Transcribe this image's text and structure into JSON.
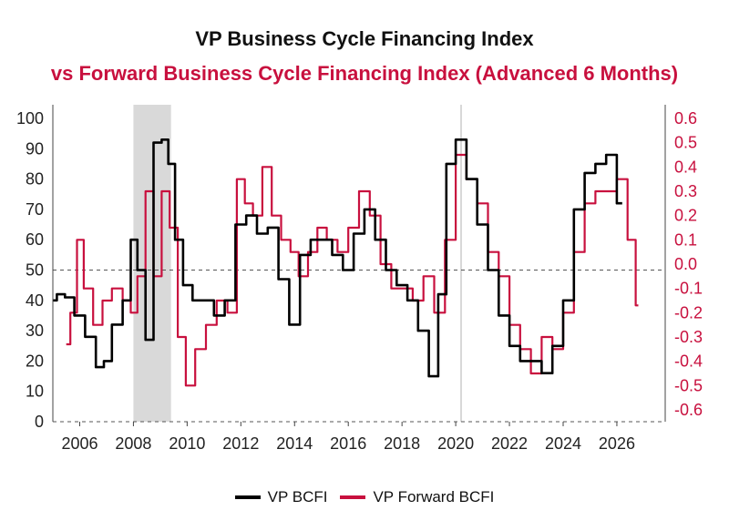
{
  "chart_data": {
    "type": "line",
    "title": "VP Business Cycle Financing Index",
    "subtitle": "vs Forward Business Cycle Financing Index (Advanced 6 Months)",
    "x_ticks": [
      "2006",
      "2008",
      "2010",
      "2012",
      "2014",
      "2016",
      "2018",
      "2020",
      "2022",
      "2024",
      "2026"
    ],
    "y_left": {
      "range": [
        0,
        100
      ],
      "ticks": [
        "0",
        "10",
        "20",
        "30",
        "40",
        "50",
        "60",
        "70",
        "80",
        "90",
        "100"
      ]
    },
    "y_right": {
      "range": [
        -0.65,
        0.65
      ],
      "ticks": [
        "-0.6",
        "-0.5",
        "-0.4",
        "-0.3",
        "-0.2",
        "-0.1",
        "0.0",
        "0.1",
        "0.2",
        "0.3",
        "0.4",
        "0.5",
        "0.6"
      ]
    },
    "x_range": [
      2005.0,
      2027.8
    ],
    "reference_lines": {
      "left_50": 50,
      "left_0": 0
    },
    "shaded_region": {
      "from": 2008.0,
      "to": 2009.4
    },
    "vline": 2020.2,
    "series": [
      {
        "name": "VP BCFI",
        "axis": "left",
        "color": "#000000",
        "x": [
          2005.0,
          2005.3,
          2005.6,
          2006.0,
          2006.4,
          2006.8,
          2007.0,
          2007.4,
          2007.8,
          2008.0,
          2008.3,
          2008.6,
          2008.9,
          2009.2,
          2009.4,
          2009.7,
          2010.0,
          2010.4,
          2010.8,
          2011.2,
          2011.6,
          2012.0,
          2012.4,
          2012.8,
          2013.2,
          2013.6,
          2014.0,
          2014.4,
          2014.8,
          2015.2,
          2015.6,
          2016.0,
          2016.4,
          2016.8,
          2017.2,
          2017.6,
          2018.0,
          2018.4,
          2018.8,
          2019.2,
          2019.5,
          2019.8,
          2020.2,
          2020.6,
          2021.0,
          2021.4,
          2021.8,
          2022.2,
          2022.6,
          2023.0,
          2023.4,
          2023.8,
          2024.2,
          2024.6,
          2025.0,
          2025.4,
          2025.8,
          2026.2
        ],
        "values": [
          40,
          42,
          41,
          35,
          28,
          18,
          20,
          32,
          40,
          60,
          50,
          27,
          92,
          93,
          85,
          60,
          45,
          40,
          40,
          35,
          40,
          65,
          68,
          62,
          64,
          47,
          32,
          55,
          60,
          60,
          55,
          50,
          62,
          70,
          60,
          50,
          45,
          40,
          30,
          15,
          42,
          85,
          93,
          80,
          65,
          50,
          35,
          25,
          20,
          20,
          16,
          25,
          40,
          70,
          82,
          85,
          88,
          72
        ]
      },
      {
        "name": "VP Forward BCFI",
        "axis": "right",
        "color": "#c8103e",
        "x": [
          2005.5,
          2005.8,
          2006.0,
          2006.3,
          2006.7,
          2007.0,
          2007.4,
          2007.8,
          2008.0,
          2008.3,
          2008.6,
          2008.9,
          2009.2,
          2009.5,
          2009.8,
          2010.1,
          2010.5,
          2010.9,
          2011.3,
          2011.7,
          2012.0,
          2012.3,
          2012.6,
          2013.0,
          2013.3,
          2013.7,
          2014.0,
          2014.3,
          2014.7,
          2015.0,
          2015.4,
          2015.8,
          2016.2,
          2016.6,
          2017.0,
          2017.4,
          2017.8,
          2018.2,
          2018.6,
          2019.0,
          2019.4,
          2019.8,
          2020.2,
          2020.6,
          2021.0,
          2021.4,
          2021.8,
          2022.2,
          2022.6,
          2023.0,
          2023.4,
          2023.8,
          2024.2,
          2024.6,
          2025.0,
          2025.4,
          2025.8,
          2026.2,
          2026.6,
          2026.8
        ],
        "values": [
          -0.33,
          -0.2,
          0.1,
          -0.1,
          -0.25,
          -0.15,
          -0.1,
          -0.15,
          -0.2,
          -0.05,
          0.3,
          -0.05,
          0.3,
          0.15,
          -0.3,
          -0.5,
          -0.35,
          -0.25,
          -0.15,
          -0.2,
          0.35,
          0.25,
          0.2,
          0.4,
          0.2,
          0.1,
          0.05,
          -0.05,
          0.05,
          0.15,
          0.1,
          0.05,
          0.15,
          0.3,
          0.2,
          0.0,
          -0.1,
          -0.1,
          -0.15,
          -0.05,
          -0.2,
          0.1,
          0.45,
          0.35,
          0.25,
          0.05,
          -0.05,
          -0.25,
          -0.35,
          -0.45,
          -0.3,
          -0.35,
          -0.2,
          0.05,
          0.25,
          0.3,
          0.3,
          0.35,
          0.1,
          -0.17
        ]
      }
    ]
  }
}
